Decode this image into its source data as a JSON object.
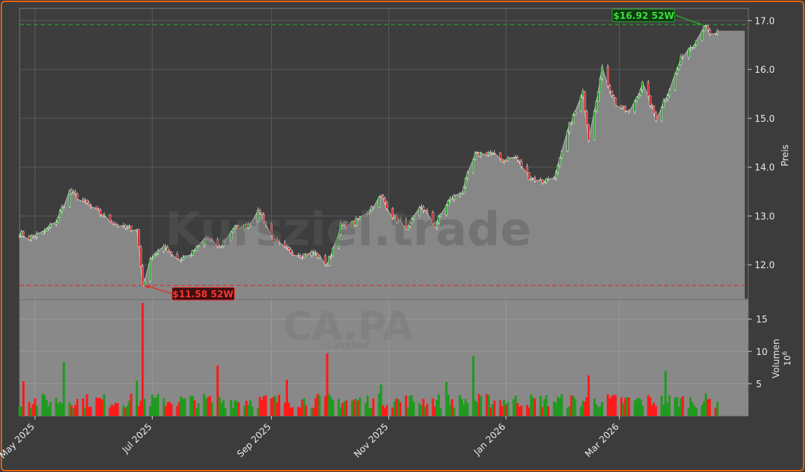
{
  "watermark": {
    "main": "Kursziel.trade",
    "ticker": "CA.PA",
    "company": "Carrefour"
  },
  "chart_data": [
    {
      "type": "candlestick",
      "panel": "price",
      "ylabel": "Preis",
      "ylim": [
        11.3,
        17.25
      ],
      "yticks": [
        12.0,
        13.0,
        14.0,
        15.0,
        16.0,
        17.0
      ],
      "ytick_labels": [
        "12.0",
        "13.0",
        "14.0",
        "15.0",
        "16.0",
        "17.0"
      ],
      "x_range": [
        "2025-04-23",
        "2026-04-29"
      ],
      "xticks": [
        "2025-05-01",
        "2025-07-01",
        "2025-09-01",
        "2025-11-01",
        "2026-01-01",
        "2026-03-01"
      ],
      "xtick_labels": [
        "May 2025",
        "Jul 2025",
        "Sep 2025",
        "Nov 2025",
        "Jan 2026",
        "Mar 2026"
      ],
      "grid": true,
      "colors": {
        "up": "#2ca02c",
        "down": "#d62728",
        "area": "#8a8a8a",
        "high_line": "#2ca02c",
        "low_line": "#e03030"
      },
      "anchors": [
        [
          "2025-04-23",
          12.65
        ],
        [
          "2025-04-28",
          12.55
        ],
        [
          "2025-05-05",
          12.65
        ],
        [
          "2025-05-12",
          12.9
        ],
        [
          "2025-05-19",
          13.5
        ],
        [
          "2025-05-26",
          13.3
        ],
        [
          "2025-06-02",
          13.1
        ],
        [
          "2025-06-09",
          12.9
        ],
        [
          "2025-06-16",
          12.75
        ],
        [
          "2025-06-23",
          12.75
        ],
        [
          "2025-06-26",
          11.58
        ],
        [
          "2025-07-01",
          12.2
        ],
        [
          "2025-07-08",
          12.35
        ],
        [
          "2025-07-15",
          12.1
        ],
        [
          "2025-07-22",
          12.25
        ],
        [
          "2025-07-29",
          12.55
        ],
        [
          "2025-08-05",
          12.35
        ],
        [
          "2025-08-12",
          12.75
        ],
        [
          "2025-08-19",
          12.8
        ],
        [
          "2025-08-26",
          13.1
        ],
        [
          "2025-09-02",
          12.5
        ],
        [
          "2025-09-09",
          12.3
        ],
        [
          "2025-09-16",
          12.2
        ],
        [
          "2025-09-23",
          12.25
        ],
        [
          "2025-09-30",
          12.0
        ],
        [
          "2025-10-07",
          12.8
        ],
        [
          "2025-10-14",
          12.85
        ],
        [
          "2025-10-21",
          13.1
        ],
        [
          "2025-10-28",
          13.4
        ],
        [
          "2025-11-04",
          12.95
        ],
        [
          "2025-11-11",
          12.75
        ],
        [
          "2025-11-18",
          13.2
        ],
        [
          "2025-11-25",
          12.8
        ],
        [
          "2025-12-02",
          13.3
        ],
        [
          "2025-12-09",
          13.5
        ],
        [
          "2025-12-16",
          14.25
        ],
        [
          "2025-12-23",
          14.3
        ],
        [
          "2025-12-30",
          14.15
        ],
        [
          "2026-01-06",
          14.2
        ],
        [
          "2026-01-13",
          13.8
        ],
        [
          "2026-01-20",
          13.7
        ],
        [
          "2026-01-27",
          13.85
        ],
        [
          "2026-02-03",
          14.85
        ],
        [
          "2026-02-10",
          15.5
        ],
        [
          "2026-02-13",
          14.6
        ],
        [
          "2026-02-20",
          16.0
        ],
        [
          "2026-02-27",
          15.3
        ],
        [
          "2026-03-06",
          15.1
        ],
        [
          "2026-03-13",
          15.7
        ],
        [
          "2026-03-20",
          15.0
        ],
        [
          "2026-03-27",
          15.6
        ],
        [
          "2026-04-03",
          16.3
        ],
        [
          "2026-04-10",
          16.6
        ],
        [
          "2026-04-14",
          16.92
        ],
        [
          "2026-04-17",
          16.7
        ],
        [
          "2026-04-21",
          16.75
        ]
      ],
      "annotations": [
        {
          "label": "$16.92 52W",
          "value": 16.92,
          "date": "2026-04-14",
          "color": "#2ca02c"
        },
        {
          "label": "$11.58 52W",
          "value": 11.58,
          "date": "2025-06-26",
          "color": "#e03030"
        }
      ]
    },
    {
      "type": "bar",
      "panel": "volume",
      "ylabel": "Volumen",
      "scale_label": "10^6",
      "ylim": [
        0,
        18
      ],
      "yticks": [
        5,
        10,
        15
      ],
      "ytick_labels": [
        "5",
        "10",
        "15"
      ],
      "spikes": [
        [
          "2025-06-26",
          17.5
        ],
        [
          "2025-05-16",
          8.3
        ],
        [
          "2025-08-04",
          7.8
        ],
        [
          "2025-09-30",
          9.7
        ],
        [
          "2025-12-15",
          9.3
        ],
        [
          "2026-02-13",
          6.3
        ],
        [
          "2026-03-25",
          7.0
        ],
        [
          "2025-09-09",
          5.6
        ],
        [
          "2025-06-23",
          5.5
        ],
        [
          "2025-04-25",
          5.4
        ],
        [
          "2025-12-01",
          5.3
        ],
        [
          "2025-10-28",
          4.9
        ]
      ]
    }
  ]
}
